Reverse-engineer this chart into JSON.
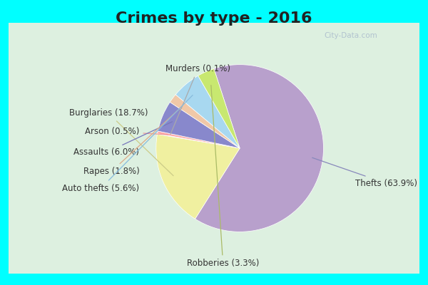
{
  "title": "Crimes by type - 2016",
  "labels": [
    "Thefts",
    "Burglaries",
    "Murders",
    "Arson",
    "Assaults",
    "Rapes",
    "Auto thefts",
    "Robberies"
  ],
  "values": [
    63.9,
    18.7,
    0.1,
    0.5,
    6.0,
    1.8,
    5.6,
    3.3
  ],
  "colors": [
    "#b8a0cc",
    "#f0f0a0",
    "#d0d0d0",
    "#ffaaaa",
    "#8888cc",
    "#f0c8a8",
    "#a8d8f0",
    "#c8e870"
  ],
  "startangle": 108,
  "background_color": "#ddf0e0",
  "border_color": "#00ffff",
  "border_thickness": 12,
  "title_fontsize": 16,
  "title_color": "#222222",
  "label_fontsize": 8.5,
  "watermark": "City-Data.com"
}
